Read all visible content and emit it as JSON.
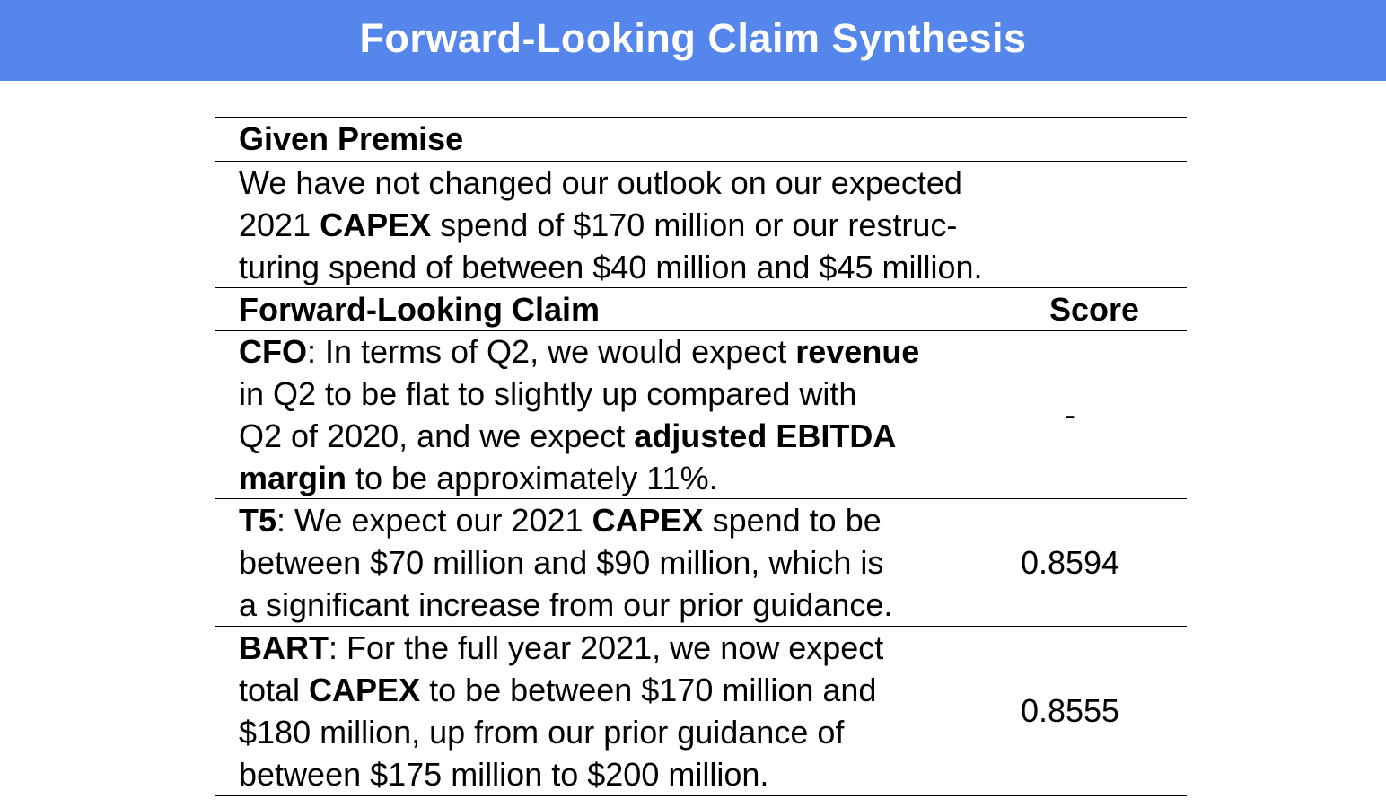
{
  "header": {
    "title": "Forward-Looking Claim Synthesis",
    "background_color": "#5586eb"
  },
  "premise": {
    "heading": "Given Premise",
    "lines": [
      "We have not changed our outlook on our expected",
      "2021 ",
      "CAPEX",
      " spend of $170 million or our restruc-",
      "turing spend of between $40 million and $45 million."
    ]
  },
  "claims_table": {
    "column_claim": "Forward-Looking Claim",
    "column_score": "Score",
    "rows": [
      {
        "source": "CFO",
        "text": {
          "l1a": ": In terms of Q2, we would expect ",
          "l1b": "revenue",
          "l2": "in Q2 to be flat to slightly up compared with",
          "l3a": "Q2 of 2020, and we expect ",
          "l3b": "adjusted EBITDA",
          "l4a": "margin",
          "l4b": " to be approximately 11%."
        },
        "score": "-"
      },
      {
        "source": "T5",
        "text": {
          "l1a": ": We expect our 2021 ",
          "l1b": "CAPEX",
          "l1c": " spend to be",
          "l2": "between $70 million and $90 million, which is",
          "l3": "a significant increase from our prior guidance."
        },
        "score": "0.8594"
      },
      {
        "source": "BART",
        "text": {
          "l1": ": For the full year 2021, we now expect",
          "l2a": "total ",
          "l2b": "CAPEX",
          "l2c": " to be between $170 million and",
          "l3": "$180 million, up from our prior guidance of",
          "l4": "between $175 million to $200 million."
        },
        "score": "0.8555"
      }
    ]
  }
}
